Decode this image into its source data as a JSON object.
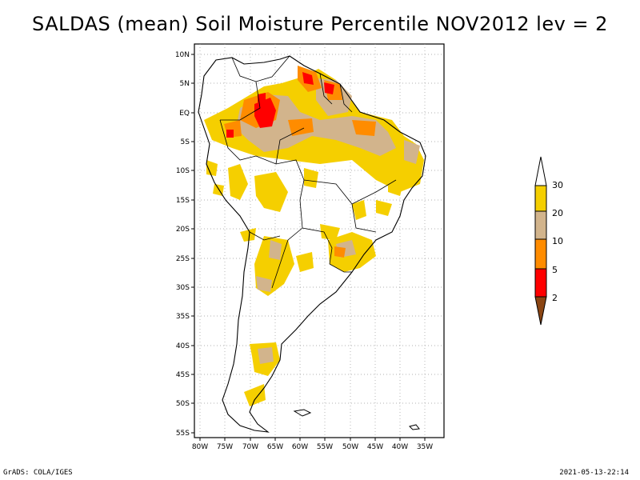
{
  "title": "SALDAS (mean) Soil Moisture Percentile NOV2012 lev = 2",
  "footer": {
    "left": "GrADS: COLA/IGES",
    "right": "2021-05-13-22:14"
  },
  "map": {
    "lat_labels": [
      "10N",
      "5N",
      "EQ",
      "5S",
      "10S",
      "15S",
      "20S",
      "25S",
      "30S",
      "35S",
      "40S",
      "45S",
      "50S",
      "55S"
    ],
    "lon_labels": [
      "80W",
      "75W",
      "70W",
      "65W",
      "60W",
      "55W",
      "50W",
      "45W",
      "40W",
      "35W"
    ]
  },
  "legend": {
    "labels": [
      "30",
      "20",
      "10",
      "5",
      "2"
    ],
    "colors": {
      "above30": "#ffffff",
      "c20_30": "#f5cf00",
      "c10_20": "#d2b48c",
      "c5_10": "#ff8c00",
      "c2_5": "#ff0000",
      "below2": "#8b4513"
    }
  }
}
